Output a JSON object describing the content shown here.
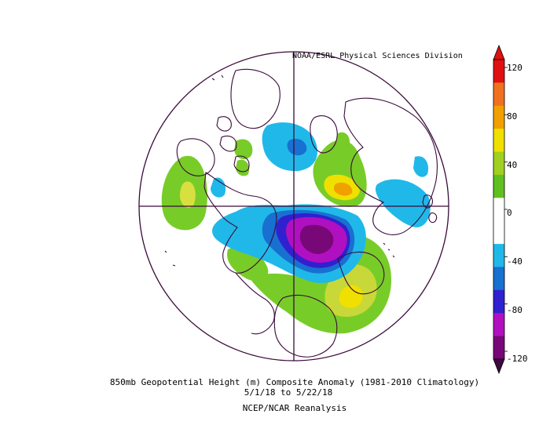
{
  "header": {
    "credit": "NOAA/ESRL Physical Sciences Division"
  },
  "caption": {
    "line1": "850mb Geopotential Height (m) Composite Anomaly (1981-2010 Climatology)",
    "line2": "5/1/18  to 5/22/18",
    "line3": "NCEP/NCAR Reanalysis"
  },
  "colorbar": {
    "labels": [
      "120",
      "80",
      "40",
      "0",
      "-40",
      "-80",
      "-120"
    ],
    "colors": [
      "#e01010",
      "#f07020",
      "#f0a000",
      "#f0e000",
      "#a0d020",
      "#60c020",
      "#ffffff",
      "#ffffff",
      "#20b8e8",
      "#1870d0",
      "#3020d0",
      "#b010c0",
      "#780878"
    ],
    "top_color": "#e01010",
    "bottom_color": "#3c0a3c"
  },
  "map": {
    "projection": "north-polar-stereographic",
    "line_color": "#3a0a3a"
  }
}
